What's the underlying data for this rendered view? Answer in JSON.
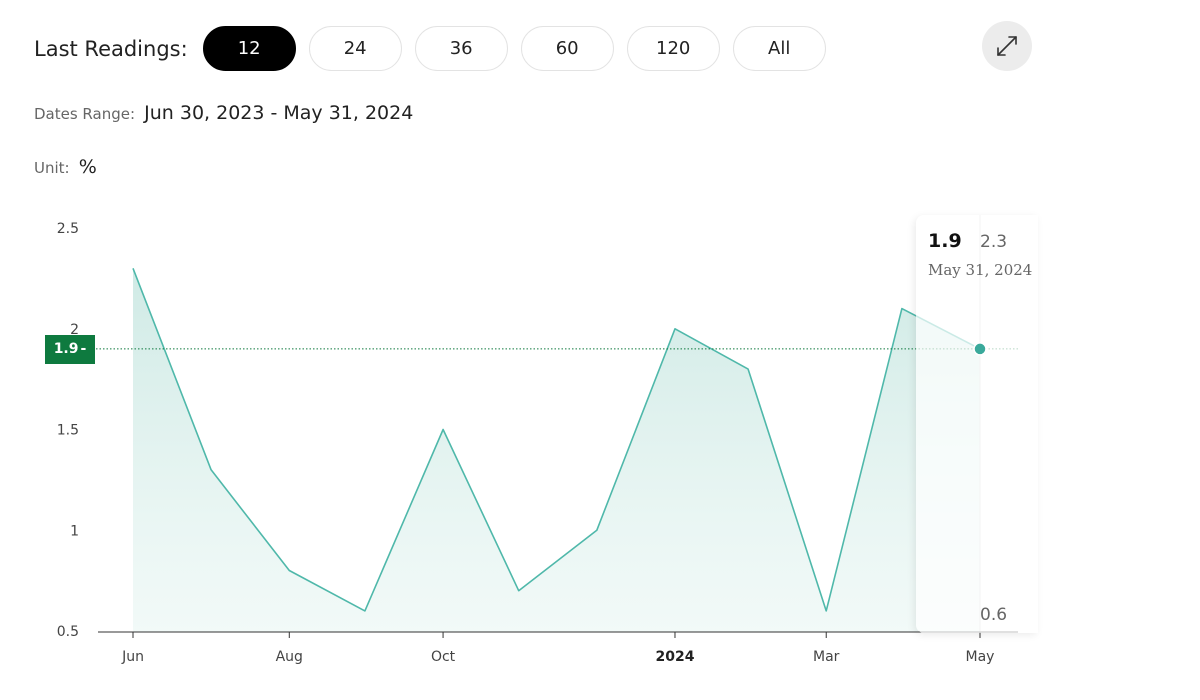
{
  "header": {
    "readings_label": "Last Readings:",
    "ranges": [
      {
        "label": "12",
        "active": true
      },
      {
        "label": "24",
        "active": false
      },
      {
        "label": "36",
        "active": false
      },
      {
        "label": "60",
        "active": false
      },
      {
        "label": "120",
        "active": false
      },
      {
        "label": "All",
        "active": false
      }
    ],
    "expand_icon": "expand-arrows-icon"
  },
  "dates_range": {
    "label": "Dates Range:",
    "value": "Jun 30, 2023 - May 31, 2024"
  },
  "unit": {
    "label": "Unit:",
    "value": "%"
  },
  "tooltip": {
    "value": "1.9",
    "date": "May 31, 2024",
    "max_label": "2.3",
    "min_label": "0.6"
  },
  "current_badge": "1.9",
  "colors": {
    "line": "#4fb8aa",
    "fill": "#cde9e4",
    "badge": "#0e7a3f",
    "active_button": "#000000"
  },
  "chart_data": {
    "type": "area",
    "x": [
      "2023-06-30",
      "2023-07-31",
      "2023-08-31",
      "2023-09-30",
      "2023-10-31",
      "2023-11-30",
      "2023-12-31",
      "2024-01-31",
      "2024-02-29",
      "2024-03-31",
      "2024-04-30",
      "2024-05-31"
    ],
    "series": [
      {
        "values": [
          2.3,
          1.3,
          0.8,
          0.6,
          1.5,
          0.7,
          1.0,
          2.0,
          1.8,
          0.6,
          2.1,
          1.9
        ]
      }
    ],
    "x_tick_labels": [
      "Jun",
      "Aug",
      "Oct",
      "2024",
      "Mar",
      "May"
    ],
    "x_tick_dates": [
      "2023-06-30",
      "2023-08-31",
      "2023-10-31",
      "2024-01-31",
      "2024-03-31",
      "2024-05-31"
    ],
    "y_ticks": [
      0.5,
      1,
      1.5,
      2,
      2.5
    ],
    "y_tick_labels": [
      "0.5",
      "1",
      "1.5",
      "2",
      "2.5"
    ],
    "ylim": [
      0.5,
      2.5
    ],
    "current_value": 1.9,
    "highlight_index": 11,
    "grid": false
  }
}
